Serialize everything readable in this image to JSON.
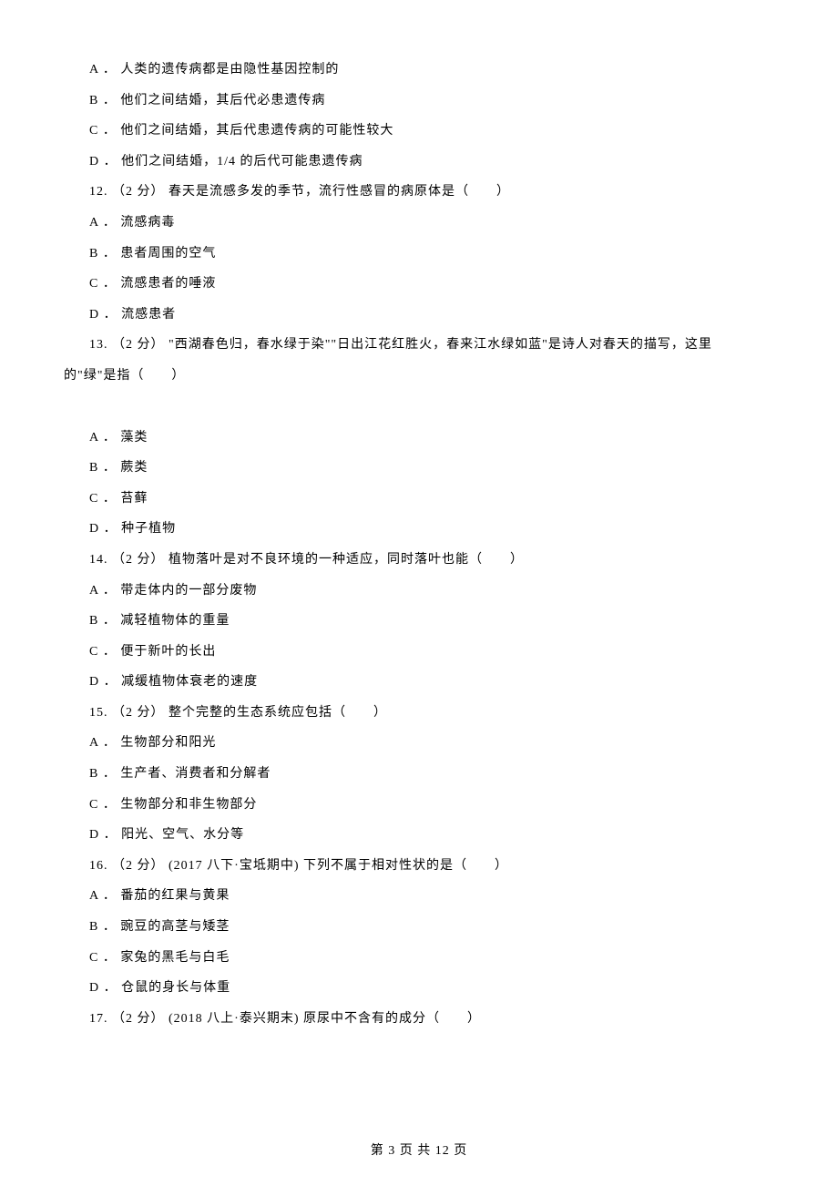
{
  "q11": {
    "optA": "A ． 人类的遗传病都是由隐性基因控制的",
    "optB": "B ． 他们之间结婚，其后代必患遗传病",
    "optC": "C ． 他们之间结婚，其后代患遗传病的可能性较大",
    "optD": "D ． 他们之间结婚，1/4 的后代可能患遗传病"
  },
  "q12": {
    "stem": "12. （2 分） 春天是流感多发的季节，流行性感冒的病原体是（　　）",
    "optA": "A ． 流感病毒",
    "optB": "B ． 患者周围的空气",
    "optC": "C ． 流感患者的唾液",
    "optD": "D ． 流感患者"
  },
  "q13": {
    "stem1": "13. （2 分） \"西湖春色归，春水绿于染\"\"日出江花红胜火，春来江水绿如蓝\"是诗人对春天的描写，这里",
    "stem2": "的\"绿\"是指（　　）",
    "optA": "A ． 藻类",
    "optB": "B ． 蕨类",
    "optC": "C ． 苔藓",
    "optD": "D ． 种子植物"
  },
  "q14": {
    "stem": "14. （2 分） 植物落叶是对不良环境的一种适应，同时落叶也能（　　）",
    "optA": "A ． 带走体内的一部分废物",
    "optB": "B ． 减轻植物体的重量",
    "optC": "C ． 便于新叶的长出",
    "optD": "D ． 减缓植物体衰老的速度"
  },
  "q15": {
    "stem": "15. （2 分） 整个完整的生态系统应包括（　　）",
    "optA": "A ． 生物部分和阳光",
    "optB": "B ． 生产者、消费者和分解者",
    "optC": "C ． 生物部分和非生物部分",
    "optD": "D ． 阳光、空气、水分等"
  },
  "q16": {
    "stem": "16. （2 分） (2017 八下·宝坻期中) 下列不属于相对性状的是（　　）",
    "optA": "A ． 番茄的红果与黄果",
    "optB": "B ． 豌豆的高茎与矮茎",
    "optC": "C ． 家兔的黑毛与白毛",
    "optD": "D ． 仓鼠的身长与体重"
  },
  "q17": {
    "stem": "17. （2 分） (2018 八上·泰兴期末) 原尿中不含有的成分（　　）"
  },
  "footer": "第 3 页 共 12 页"
}
